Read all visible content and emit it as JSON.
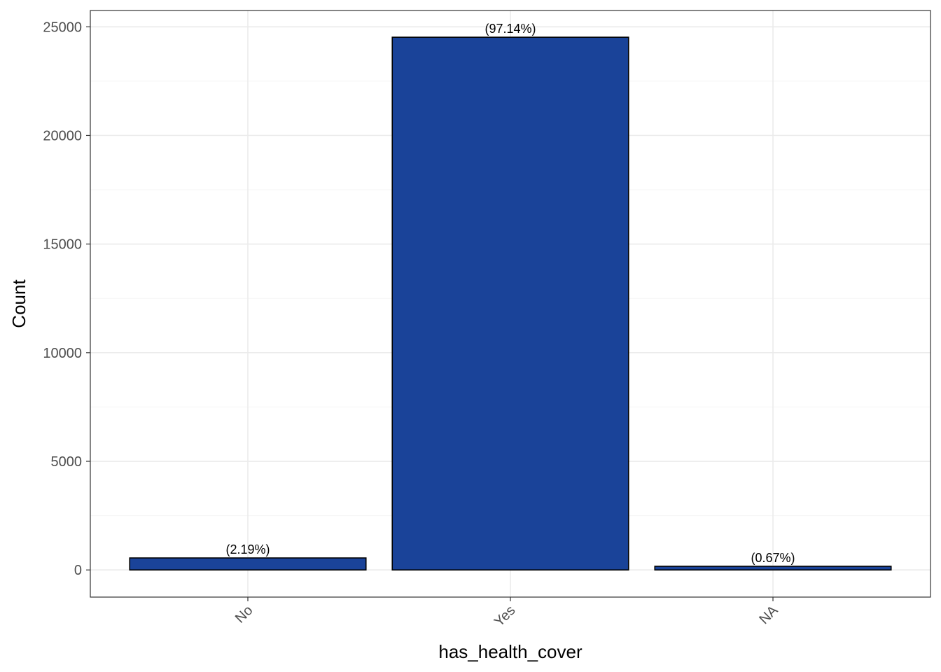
{
  "chart_data": {
    "type": "bar",
    "categories": [
      "No",
      "Yes",
      "NA"
    ],
    "values": [
      552,
      24520,
      168
    ],
    "data_labels": [
      "(2.19%)",
      "(97.14%)",
      "(0.67%)"
    ],
    "title": "",
    "xlabel": "has_health_cover",
    "ylabel": "Count",
    "ylim": [
      -1250,
      25750
    ],
    "yticks": [
      0,
      5000,
      10000,
      15000,
      20000,
      25000
    ],
    "ytick_labels": [
      "0",
      "5000",
      "10000",
      "15000",
      "20000",
      "25000"
    ],
    "x_tick_rotation_deg": 45,
    "grid": true,
    "legend": "none",
    "colors": {
      "bar_fill": "#1A4399",
      "bar_stroke": "#000000",
      "grid_major": "#EBEBEB",
      "grid_minor": "#F5F5F5",
      "panel_border": "#333333",
      "tick_label": "#4D4D4D"
    }
  }
}
